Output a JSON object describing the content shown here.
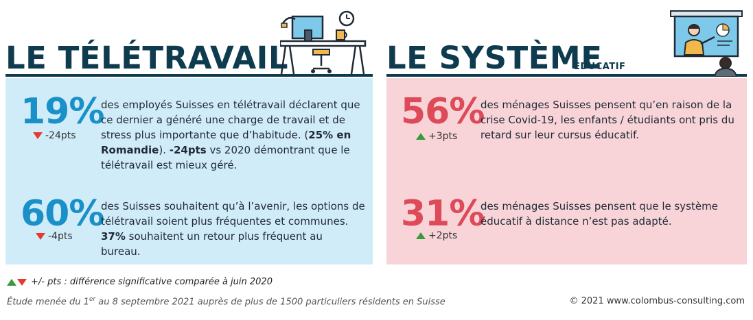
{
  "left": {
    "title": "LE TÉLÉTRAVAIL",
    "stats": [
      {
        "value": "19%",
        "delta": "-24pts",
        "text_parts": [
          "des employés Suisses en télétravail déclarent que ce dernier a généré une charge de travail et de stress plus importante que d’habitude. (",
          "25% en Romandie",
          "). ",
          "-24pts",
          " vs 2020 démontrant que le télétravail est mieux géré."
        ]
      },
      {
        "value": "60%",
        "delta": "-4pts",
        "text_parts": [
          "des Suisses souhaitent qu’à l’avenir, les options de télétravail soient plus fréquentes et communes. ",
          "37%",
          " souhaitent un retour plus fréquent au bureau."
        ]
      }
    ]
  },
  "right": {
    "title": "LE SYSTÈME",
    "subtitle": "ÉDUCATIF",
    "stats": [
      {
        "value": "56%",
        "delta": "+3pts",
        "text": "des ménages Suisses pensent qu’en raison de la crise Covid-19, les enfants / étudiants ont pris du retard sur leur cursus éducatif."
      },
      {
        "value": "31%",
        "delta": "+2pts",
        "text": "des ménages Suisses pensent que le système éducatif à distance n’est pas adapté."
      }
    ]
  },
  "footer": {
    "legend": "+/- pts : différence significative comparée à juin 2020",
    "source_prefix": "Étude menée du 1",
    "source_sup": "er",
    "source_suffix": " au 8 septembre 2021 auprès de plus de 1500 particuliers résidents en Suisse",
    "copyright": "© 2021 www.colombus-consulting.com"
  },
  "colors": {
    "navy": "#0f3b4f",
    "blue_stat": "#1a90c8",
    "red_stat": "#dd4a58",
    "panel_blue": "#d1ecf9",
    "panel_pink": "#f8d4d8",
    "down": "#e53935",
    "up": "#3a9b3c"
  },
  "icons": [
    "desk-workstation-icon",
    "wall-clock-icon",
    "teacher-presentation-icon"
  ]
}
